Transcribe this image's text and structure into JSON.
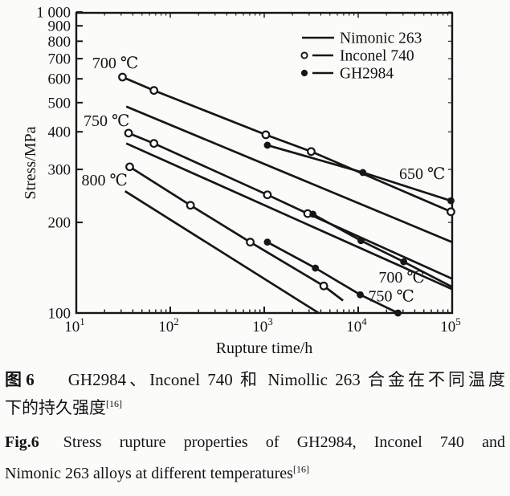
{
  "figure": {
    "chart_data": {
      "type": "line",
      "x_scale": "log",
      "y_scale": "log",
      "xlabel": "Rupture time/h",
      "ylabel": "Stress/MPa",
      "xlim": [
        10,
        100000
      ],
      "ylim": [
        100,
        1000
      ],
      "grid": false,
      "x_tick_exponents": [
        1,
        2,
        3,
        4,
        5
      ],
      "x_tick_base": "10",
      "y_ticks": [
        100,
        200,
        300,
        400,
        500,
        600,
        700,
        800,
        900,
        1000
      ],
      "y_tick_labels": [
        "100",
        "200",
        "300",
        "400",
        "500",
        "600",
        "700",
        "800",
        "900",
        "1 000"
      ],
      "legend_position": "top-right-inside",
      "legend": [
        {
          "label": "Nimonic 263",
          "marker": "none"
        },
        {
          "label": "Inconel 740",
          "marker": "open"
        },
        {
          "label": "GH2984",
          "marker": "filled"
        }
      ],
      "series": [
        {
          "alloy": "Nimonic 263",
          "temperature": "700 ℃",
          "marker": "none",
          "line": [
            [
              34,
              485
            ],
            [
              100000,
              172
            ]
          ],
          "points": []
        },
        {
          "alloy": "Nimonic 263",
          "temperature": "750 ℃",
          "marker": "none",
          "line": [
            [
              34,
              366
            ],
            [
              100000,
              120
            ]
          ],
          "points": []
        },
        {
          "alloy": "Nimonic 263",
          "temperature": "800 ℃",
          "marker": "none",
          "line": [
            [
              33,
              254
            ],
            [
              3800,
              100
            ]
          ],
          "points": []
        },
        {
          "alloy": "Inconel 740",
          "temperature": "650 ℃",
          "marker": "open",
          "line": [
            [
              31,
              608
            ],
            [
              67,
              549
            ],
            [
              1040,
              391
            ],
            [
              3160,
              344
            ],
            [
              97000,
              217
            ]
          ],
          "points": [
            [
              31,
              608
            ],
            [
              67,
              549
            ],
            [
              1040,
              391
            ],
            [
              3160,
              344
            ],
            [
              97000,
              217
            ]
          ]
        },
        {
          "alloy": "Inconel 740",
          "temperature": "700 ℃",
          "marker": "open",
          "line": [
            [
              36,
              396
            ],
            [
              67,
              366
            ],
            [
              1080,
              247
            ],
            [
              2900,
              214
            ],
            [
              100000,
              130
            ]
          ],
          "points": [
            [
              36,
              396
            ],
            [
              67,
              366
            ],
            [
              1080,
              247
            ],
            [
              2900,
              214
            ]
          ]
        },
        {
          "alloy": "Inconel 740",
          "temperature": "750 ℃",
          "marker": "open",
          "line": [
            [
              37,
              306
            ],
            [
              164,
              228
            ],
            [
              710,
              172
            ],
            [
              4300,
              123
            ],
            [
              6900,
              110
            ]
          ],
          "points": [
            [
              37,
              306
            ],
            [
              164,
              228
            ],
            [
              710,
              172
            ],
            [
              4300,
              123
            ]
          ]
        },
        {
          "alloy": "GH2984",
          "temperature": "650 ℃",
          "marker": "filled",
          "line": [
            [
              1080,
              361
            ],
            [
              11200,
              293
            ],
            [
              97000,
              236
            ]
          ],
          "points": [
            [
              1080,
              361
            ],
            [
              11200,
              293
            ],
            [
              97000,
              236
            ]
          ]
        },
        {
          "alloy": "GH2984",
          "temperature": "700 ℃",
          "marker": "filled",
          "line": [
            [
              3300,
              213
            ],
            [
              10700,
              174
            ],
            [
              30500,
              148
            ],
            [
              100000,
              122
            ]
          ],
          "points": [
            [
              3300,
              213
            ],
            [
              10700,
              174
            ],
            [
              30500,
              148
            ]
          ]
        },
        {
          "alloy": "GH2984",
          "temperature": "750 ℃",
          "marker": "filled",
          "line": [
            [
              1080,
              172
            ],
            [
              3500,
              141
            ],
            [
              10500,
              115
            ],
            [
              26500,
              100
            ]
          ],
          "points": [
            [
              1080,
              172
            ],
            [
              3500,
              141
            ],
            [
              10500,
              115
            ],
            [
              26500,
              100
            ]
          ]
        }
      ],
      "annotations": [
        {
          "label": "700 ℃",
          "t": 26,
          "s": 680
        },
        {
          "label": "750 ℃",
          "t": 21,
          "s": 437
        },
        {
          "label": "800 ℃",
          "t": 20,
          "s": 277
        },
        {
          "label": "650 ℃",
          "t": 48000,
          "s": 291
        },
        {
          "label": "700 ℃",
          "t": 29000,
          "s": 132
        },
        {
          "label": "750 ℃",
          "t": 22500,
          "s": 114
        }
      ],
      "ink_color": "#161616"
    },
    "captions": {
      "zh": {
        "fig_label": "图 6",
        "line1": "GH2984、Inconel 740 和 Nimollic 263 合金在不同温度",
        "line2": "下的持久强度",
        "ref": "[16]"
      },
      "en": {
        "fig_label": "Fig.6",
        "line1": "Stress rupture properties of GH2984, Inconel 740 and",
        "line2": "Nimonic 263 alloys at different temperatures",
        "ref": "[16]"
      }
    }
  }
}
